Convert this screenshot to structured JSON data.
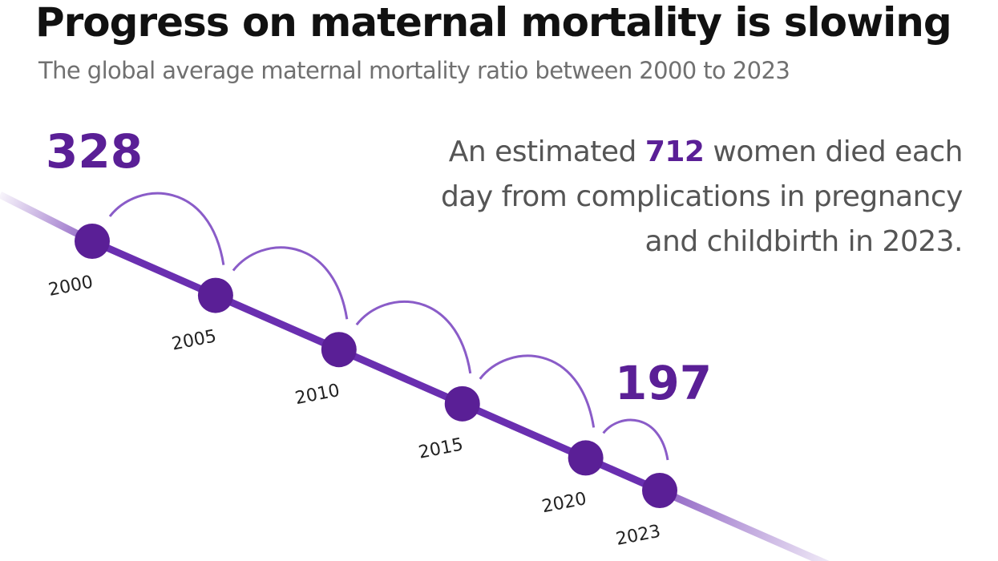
{
  "title": "Progress on maternal mortality is slowing",
  "subtitle": "The global average maternal mortality ratio between 2000 to 2023",
  "callout": {
    "before": "An estimated ",
    "number": "712",
    "after": " women died each day from complications in pregnancy and childbirth in 2023."
  },
  "colors": {
    "accent": "#5a1f96",
    "line": "#6a2fb0",
    "arc": "#8a5cc8"
  },
  "chart_data": {
    "type": "line",
    "title": "Progress on maternal mortality is slowing",
    "subtitle": "The global average maternal mortality ratio between 2000 to 2023",
    "x": [
      2000,
      2005,
      2010,
      2015,
      2020,
      2023
    ],
    "x_tick_labels": [
      "2000",
      "2005",
      "2010",
      "2015",
      "2020",
      "2023"
    ],
    "start_value": 328,
    "end_value": 197,
    "value_labels": [
      "328",
      "197"
    ],
    "xlabel": "",
    "ylabel": "",
    "grid": false,
    "legend": "none"
  }
}
